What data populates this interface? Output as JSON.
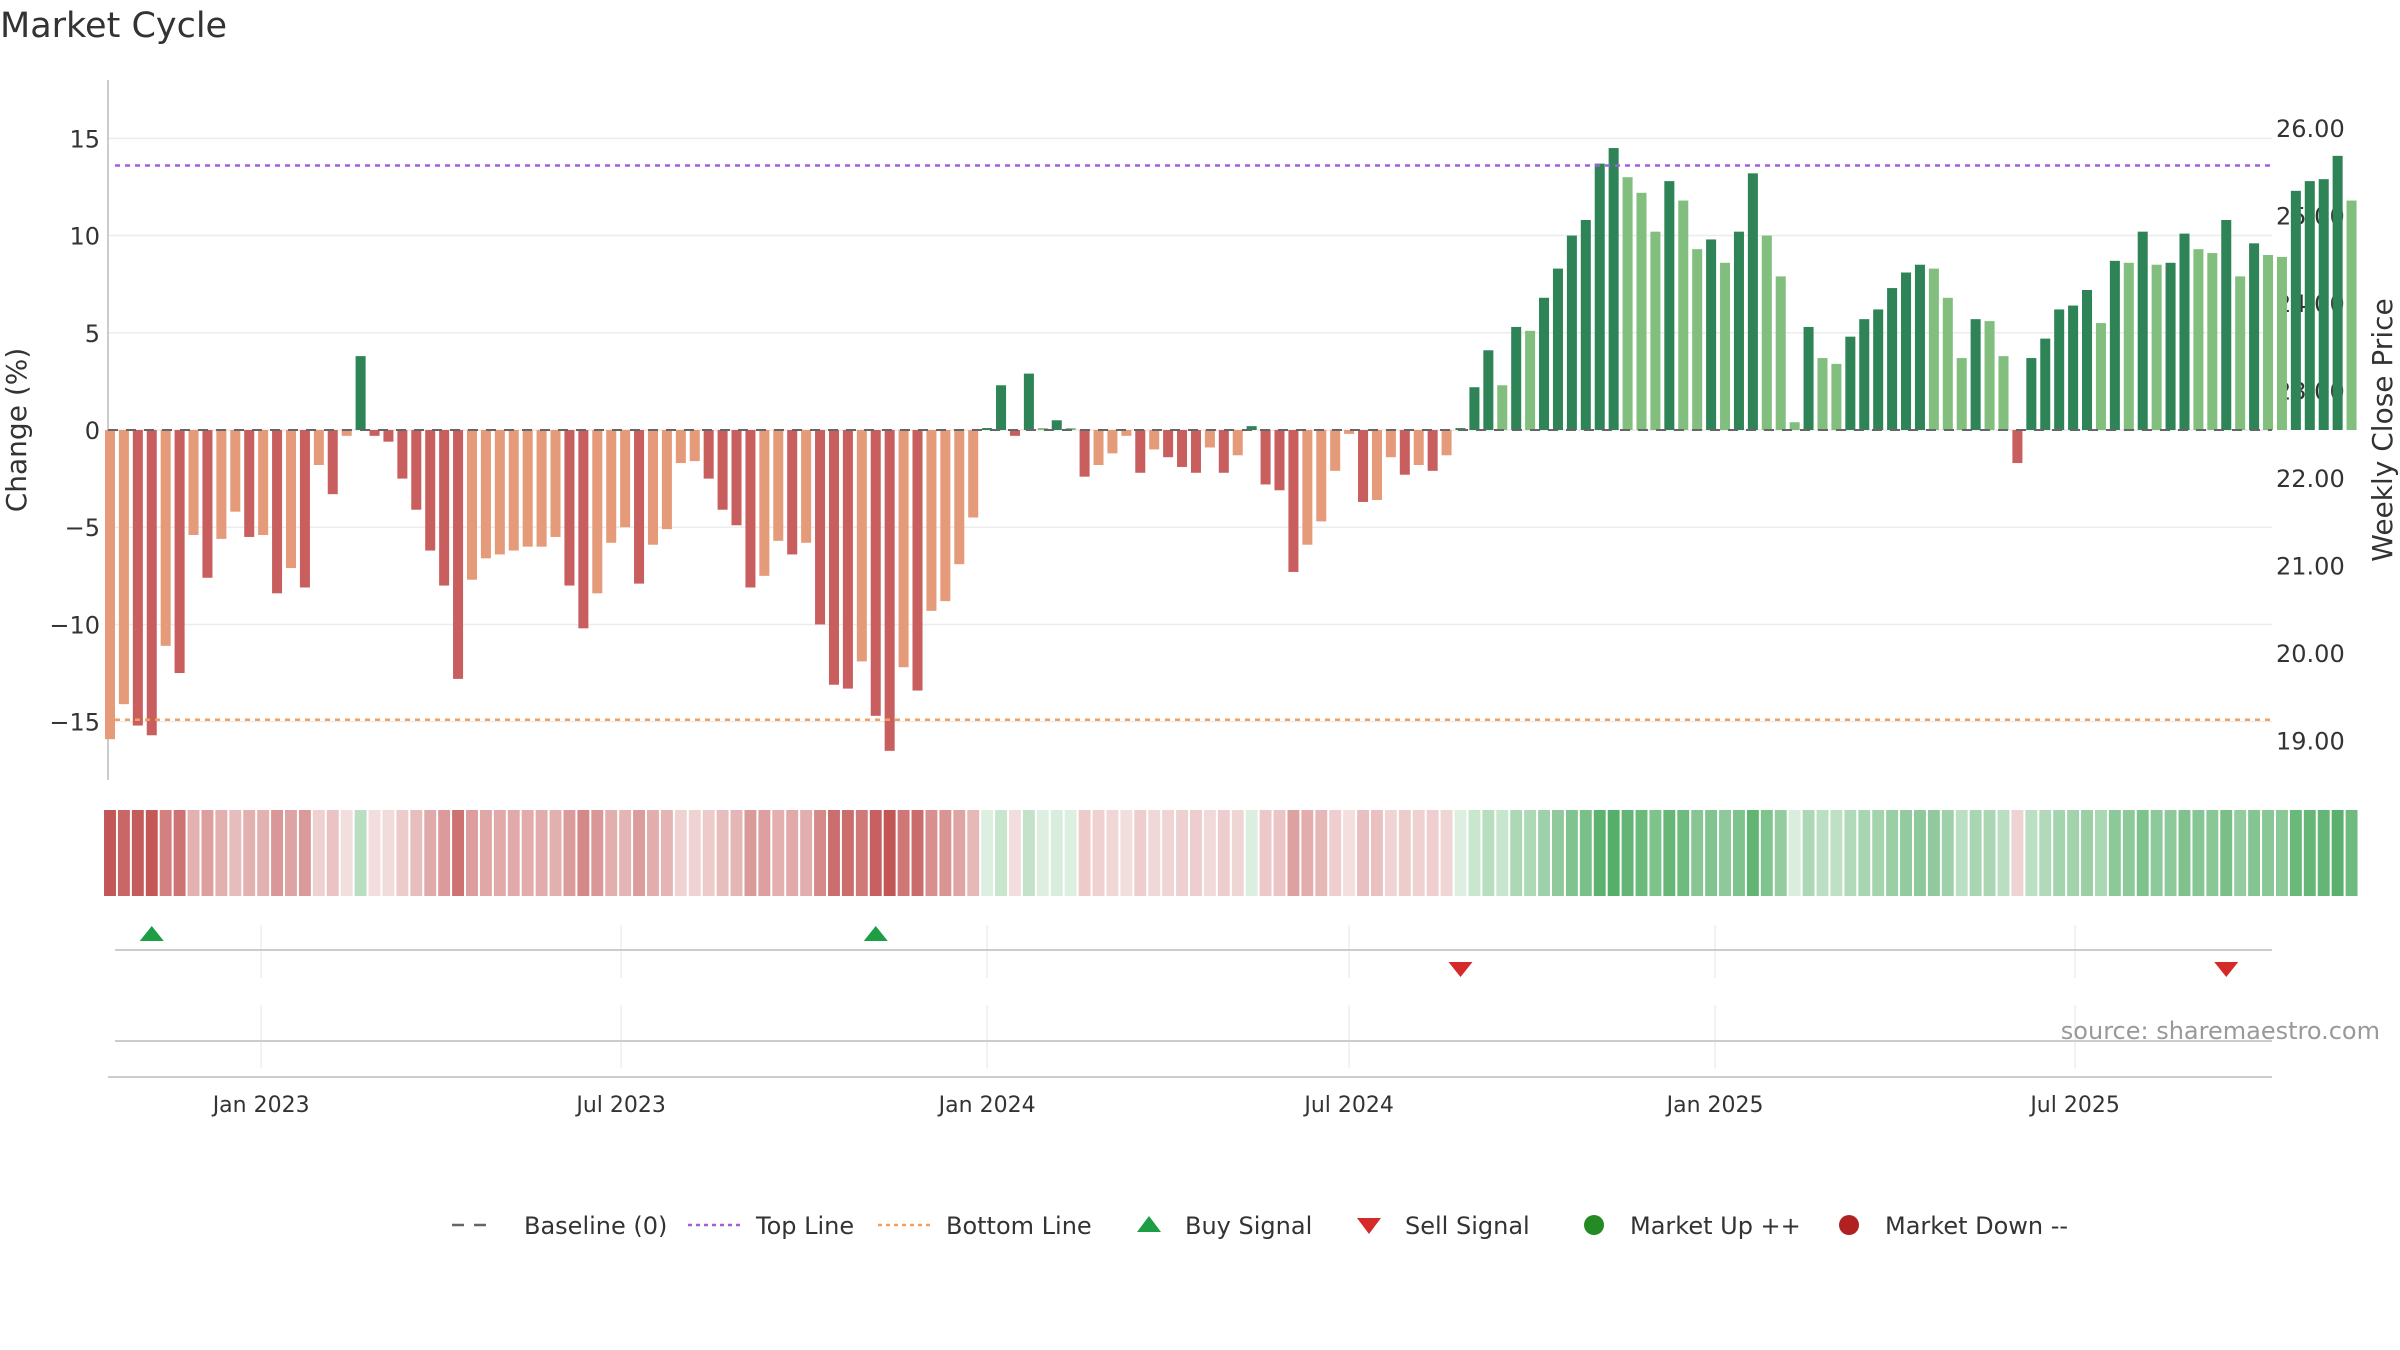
{
  "chart_data": {
    "type": "bar",
    "title": "Market Cycle",
    "ylabel": "Change (%)",
    "y2label": "Weekly Close Price",
    "ylim": [
      -18,
      18
    ],
    "y_ticks": [
      15,
      10,
      5,
      0,
      -5,
      -10,
      -15
    ],
    "y_tick_labels": [
      "15",
      "10",
      "5",
      "0",
      "−5",
      "−10",
      "−15"
    ],
    "y2lim": [
      18.55,
      26.55
    ],
    "y2_ticks": [
      26,
      25,
      24,
      23,
      22,
      21,
      20,
      19
    ],
    "y2_tick_labels": [
      "26.00",
      "25.00",
      "24.00",
      "23.00",
      "22.00",
      "21.00",
      "20.00",
      "19.00"
    ],
    "xlim": [
      "2022-10-16",
      "2025-10-08"
    ],
    "x_ticks": [
      "2023-01-01",
      "2023-07-01",
      "2024-01-01",
      "2024-07-01",
      "2025-01-01",
      "2025-07-01"
    ],
    "x_tick_labels": [
      "Jan 2023",
      "Jul 2023",
      "Jan 2024",
      "Jul 2024",
      "Jan 2025",
      "Jul 2025"
    ],
    "first_week": "2022-10-17",
    "top_line": 13.6,
    "bottom_line": -14.9,
    "values": [
      -15.9,
      -14.1,
      -15.2,
      -15.7,
      -11.1,
      -12.5,
      -5.4,
      -7.6,
      -5.6,
      -4.2,
      -5.5,
      -5.4,
      -8.4,
      -7.1,
      -8.1,
      -1.8,
      -3.3,
      -0.3,
      3.8,
      -0.3,
      -0.6,
      -2.5,
      -4.1,
      -6.2,
      -8.0,
      -12.8,
      -7.7,
      -6.6,
      -6.4,
      -6.2,
      -6.0,
      -6.0,
      -5.5,
      -8.0,
      -10.2,
      -8.4,
      -5.8,
      -5.0,
      -7.9,
      -5.9,
      -5.1,
      -1.7,
      -1.6,
      -2.5,
      -4.1,
      -4.9,
      -8.1,
      -7.5,
      -5.7,
      -6.4,
      -5.8,
      -10.0,
      -13.1,
      -13.3,
      -11.9,
      -14.7,
      -16.5,
      -12.2,
      -13.4,
      -9.3,
      -8.8,
      -6.9,
      -4.5,
      0.1,
      2.3,
      -0.3,
      2.9,
      0.1,
      0.5,
      0.1,
      -2.4,
      -1.8,
      -1.2,
      -0.3,
      -2.2,
      -1.0,
      -1.4,
      -1.9,
      -2.2,
      -0.9,
      -2.2,
      -1.3,
      0.2,
      -2.8,
      -3.1,
      -7.3,
      -5.9,
      -4.7,
      -2.1,
      -0.2,
      -3.7,
      -3.6,
      -1.4,
      -2.3,
      -1.8,
      -2.1,
      -1.3,
      0.1,
      2.2,
      4.1,
      2.3,
      5.3,
      5.1,
      6.8,
      8.3,
      10.0,
      10.8,
      13.7,
      14.5,
      13.0,
      12.2,
      10.2,
      12.8,
      11.8,
      9.3,
      9.8,
      8.6,
      10.2,
      13.2,
      10.0,
      7.9,
      0.4,
      5.3,
      3.7,
      3.4,
      4.8,
      5.7,
      6.2,
      7.3,
      8.1,
      8.5,
      8.3,
      6.8,
      3.7,
      5.7,
      5.6,
      3.8,
      -1.7,
      3.7,
      4.7,
      6.2,
      6.4,
      7.2,
      5.5,
      8.7,
      8.6,
      10.2,
      8.5,
      8.6,
      10.1,
      9.3,
      9.1,
      10.8,
      7.9,
      9.6,
      9.0,
      8.9,
      12.3,
      12.8,
      12.9,
      14.1,
      11.8
    ],
    "series_colors": {
      "strong_up": "#2e8456",
      "weak_up": "#82bf7e",
      "weak_down": "#e59a7a",
      "strong_down": "#c95e5e",
      "top_line": "#a35ee0",
      "bottom_line": "#f0a060",
      "buy": "#1e9e44",
      "sell": "#d62a2a",
      "market_up": "#248a24",
      "market_down": "#b02222"
    },
    "buy_signals": [
      "2022-11-07",
      "2023-11-06"
    ],
    "sell_signals": [
      "2024-08-26",
      "2025-09-15"
    ],
    "legend": {
      "position": "bottom-center",
      "items": [
        {
          "label": "Baseline (0)",
          "marker": "dashed-line",
          "color": "#666666"
        },
        {
          "label": "Top Line",
          "marker": "dotted-line",
          "color": "#a35ee0"
        },
        {
          "label": "Bottom Line",
          "marker": "dotted-line",
          "color": "#f0a060"
        },
        {
          "label": "Buy Signal",
          "marker": "triangle-up",
          "color": "#1e9e44"
        },
        {
          "label": "Sell Signal",
          "marker": "triangle-down",
          "color": "#d62a2a"
        },
        {
          "label": "Market Up ++",
          "marker": "circle",
          "color": "#248a24"
        },
        {
          "label": "Market Down --",
          "marker": "circle",
          "color": "#b02222"
        }
      ]
    },
    "grid": true
  },
  "source_text": "source: sharemaestro.com"
}
